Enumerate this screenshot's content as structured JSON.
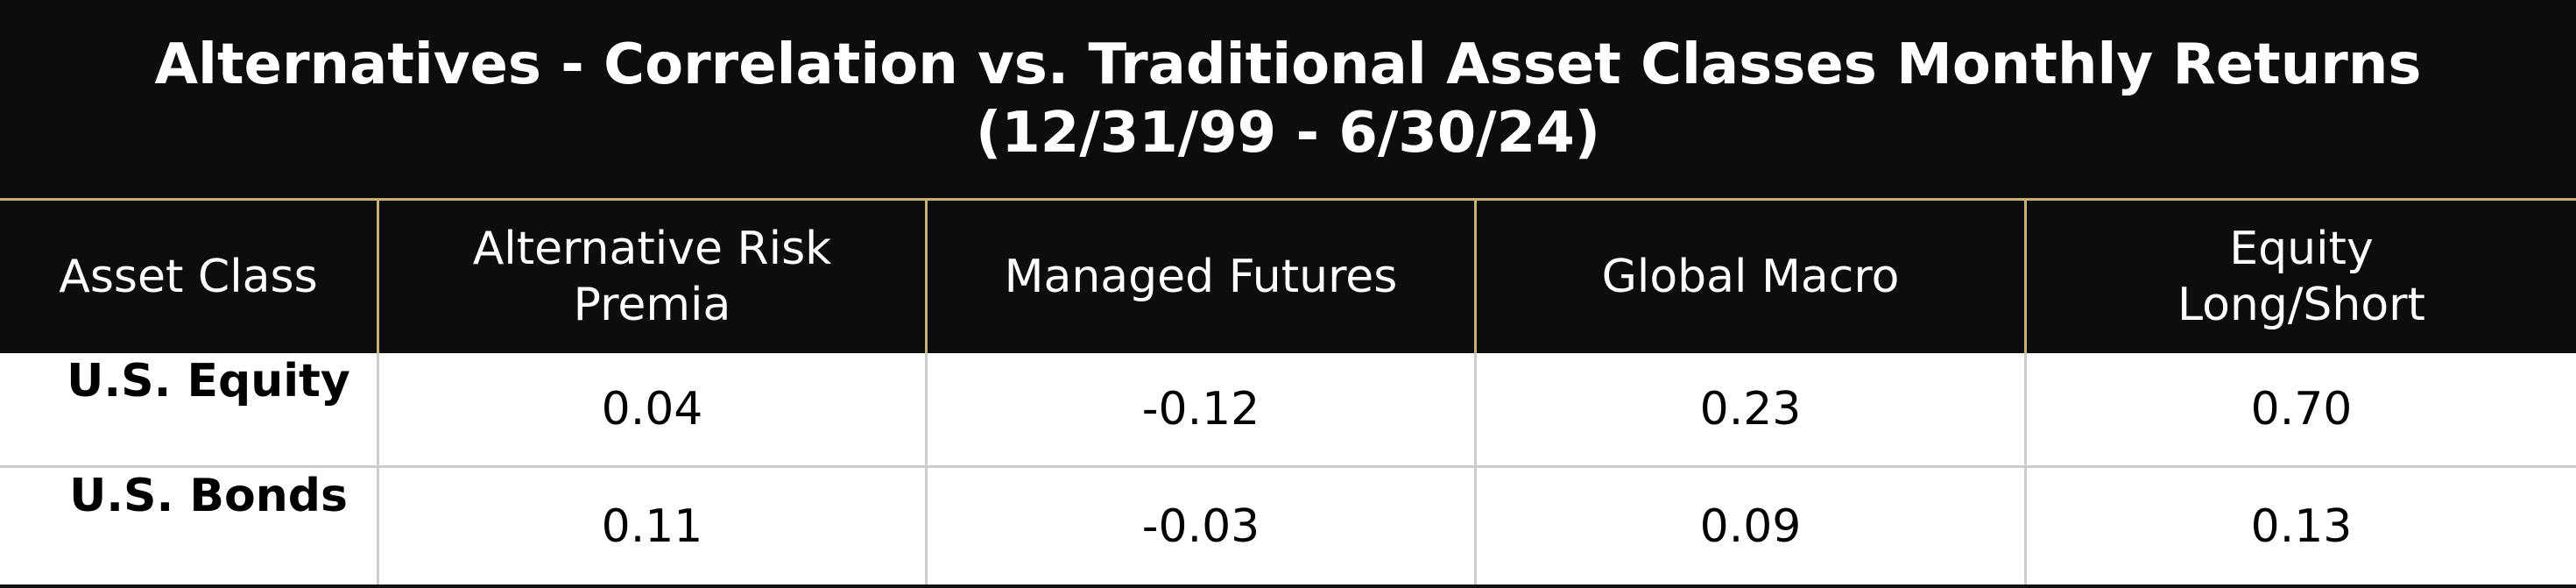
{
  "header": {
    "title": [
      "Alternatives - Correlation vs. Traditional Asset Classes Monthly Returns",
      "(12/31/99 - 6/30/24)"
    ]
  },
  "table": {
    "columns": [
      [
        "Asset Class"
      ],
      [
        "Alternative Risk",
        "Premia"
      ],
      [
        "Managed Futures"
      ],
      [
        "Global Macro"
      ],
      [
        "Equity",
        "Long/Short"
      ]
    ],
    "rows": [
      [
        "U.S. Equity",
        "0.04",
        "-0.12",
        "0.23",
        "0.70"
      ],
      [
        "U.S. Bonds",
        "0.11",
        "-0.03",
        "0.09",
        "0.13"
      ]
    ]
  }
}
